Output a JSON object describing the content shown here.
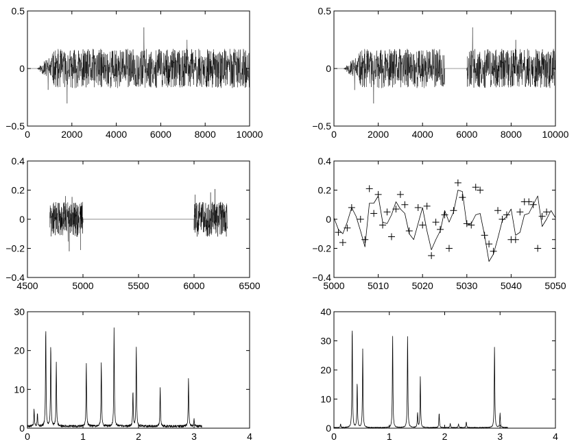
{
  "chart_data": [
    {
      "id": "signal-full",
      "type": "line",
      "xlim": [
        0,
        10000
      ],
      "ylim": [
        -0.5,
        0.5
      ],
      "xticks": [
        0,
        2000,
        4000,
        6000,
        8000,
        10000
      ],
      "yticks": [
        -0.5,
        0,
        0.5
      ],
      "xtick_labels": [
        "0",
        "2000",
        "4000",
        "6000",
        "8000",
        "10000"
      ],
      "ytick_labels": [
        "−0.5",
        "0",
        "0.5"
      ],
      "signal": {
        "zero_until": 430,
        "ramp_end": 1300,
        "amplitude": 0.17,
        "peak_abs": 0.4,
        "gap": null
      }
    },
    {
      "id": "signal-gap",
      "type": "line",
      "xlim": [
        0,
        10000
      ],
      "ylim": [
        -0.5,
        0.5
      ],
      "xticks": [
        0,
        2000,
        4000,
        6000,
        8000,
        10000
      ],
      "yticks": [
        -0.5,
        0,
        0.5
      ],
      "xtick_labels": [
        "0",
        "2000",
        "4000",
        "6000",
        "8000",
        "10000"
      ],
      "ytick_labels": [
        "−0.5",
        "0",
        "0.5"
      ],
      "signal": {
        "zero_until": 430,
        "ramp_end": 1300,
        "amplitude": 0.17,
        "peak_abs": 0.4,
        "gap": [
          5000,
          6000
        ]
      }
    },
    {
      "id": "gap-zoom",
      "type": "line",
      "xlim": [
        4500,
        6500
      ],
      "ylim": [
        -0.4,
        0.4
      ],
      "xticks": [
        4500,
        5000,
        5500,
        6000,
        6500
      ],
      "yticks": [
        -0.4,
        -0.2,
        0,
        0.2,
        0.4
      ],
      "xtick_labels": [
        "4500",
        "5000",
        "5500",
        "6000",
        "6500"
      ],
      "ytick_labels": [
        "−0.4",
        "−0.2",
        "0",
        "0.2",
        "0.4"
      ],
      "segments": [
        [
          4700,
          5000
        ],
        [
          6000,
          6300
        ]
      ],
      "amplitude": 0.12,
      "flat_between": [
        5000,
        6000
      ]
    },
    {
      "id": "reconstruction-zoom",
      "type": "line",
      "xlim": [
        5000,
        5050
      ],
      "ylim": [
        -0.4,
        0.4
      ],
      "xticks": [
        5000,
        5010,
        5020,
        5030,
        5040,
        5050
      ],
      "yticks": [
        -0.4,
        -0.2,
        0,
        0.2,
        0.4
      ],
      "xtick_labels": [
        "5000",
        "5010",
        "5020",
        "5030",
        "5040",
        "5050"
      ],
      "ytick_labels": [
        "−0.4",
        "−0.2",
        "0",
        "0.2",
        "0.4"
      ],
      "series": [
        {
          "style": "line",
          "x": [
            5000,
            5001,
            5002,
            5003,
            5004,
            5005,
            5006,
            5007,
            5008,
            5009,
            5010,
            5011,
            5012,
            5013,
            5014,
            5015,
            5016,
            5017,
            5018,
            5019,
            5020,
            5021,
            5022,
            5023,
            5024,
            5025,
            5026,
            5027,
            5028,
            5029,
            5030,
            5031,
            5032,
            5033,
            5034,
            5035,
            5036,
            5037,
            5038,
            5039,
            5040,
            5041,
            5042,
            5043,
            5044,
            5045,
            5046,
            5047,
            5048,
            5049,
            5050
          ],
          "y": [
            0.01,
            -0.07,
            -0.1,
            -0.02,
            0.08,
            0.02,
            -0.08,
            -0.19,
            0.11,
            0.11,
            0.16,
            -0.02,
            -0.03,
            0.03,
            0.12,
            0.07,
            0.04,
            -0.1,
            -0.14,
            -0.03,
            0.08,
            -0.08,
            -0.21,
            -0.14,
            -0.08,
            0.06,
            -0.02,
            0.05,
            0.2,
            0.19,
            -0.04,
            -0.03,
            0.03,
            0.04,
            -0.11,
            -0.29,
            -0.24,
            -0.13,
            -0.01,
            0.02,
            0.07,
            -0.11,
            -0.09,
            0.03,
            0.04,
            0.1,
            0.16,
            -0.05,
            0.0,
            0.06,
            0.01
          ]
        },
        {
          "style": "plus",
          "x": [
            5001,
            5002,
            5003,
            5004,
            5006,
            5007,
            5008,
            5009,
            5010,
            5011,
            5012,
            5013,
            5014,
            5015,
            5016,
            5017,
            5019,
            5020,
            5021,
            5022,
            5023,
            5024,
            5025,
            5026,
            5027,
            5028,
            5029,
            5030,
            5031,
            5032,
            5033,
            5034,
            5035,
            5036,
            5037,
            5038,
            5039,
            5040,
            5041,
            5042,
            5043,
            5044,
            5045,
            5046,
            5047,
            5048,
            5050
          ],
          "y": [
            -0.09,
            -0.16,
            -0.06,
            0.08,
            0.0,
            -0.14,
            0.21,
            0.04,
            0.17,
            -0.04,
            0.05,
            -0.12,
            0.07,
            0.17,
            0.1,
            -0.08,
            0.08,
            -0.04,
            0.09,
            -0.25,
            -0.02,
            -0.07,
            0.03,
            -0.2,
            0.06,
            0.25,
            0.15,
            -0.03,
            -0.04,
            0.22,
            0.2,
            -0.11,
            -0.17,
            -0.22,
            0.06,
            0.0,
            0.03,
            -0.14,
            -0.14,
            0.05,
            0.12,
            0.12,
            0.1,
            -0.2,
            0.02,
            0.05,
            -0.14
          ]
        }
      ]
    },
    {
      "id": "spectrum-a",
      "type": "line",
      "xlim": [
        0,
        4
      ],
      "ylim": [
        0,
        30
      ],
      "xticks": [
        0,
        1,
        2,
        3,
        4
      ],
      "yticks": [
        0,
        10,
        20,
        30
      ],
      "xtick_labels": [
        "0",
        "1",
        "2",
        "3",
        "4"
      ],
      "ytick_labels": [
        "0",
        "10",
        "20",
        "30"
      ],
      "x_end": 3.14,
      "baseline": 0.5,
      "peaks": [
        [
          0.33,
          25.5
        ],
        [
          0.42,
          21.2
        ],
        [
          0.52,
          16.3
        ],
        [
          0.12,
          4.3
        ],
        [
          0.18,
          3.5
        ],
        [
          1.06,
          16.2
        ],
        [
          1.33,
          16.8
        ],
        [
          1.56,
          25.2
        ],
        [
          1.9,
          8.9
        ],
        [
          1.96,
          20.5
        ],
        [
          2.39,
          10.0
        ],
        [
          2.9,
          12.2
        ],
        [
          3.0,
          1.8
        ]
      ]
    },
    {
      "id": "spectrum-b",
      "type": "line",
      "xlim": [
        0,
        4
      ],
      "ylim": [
        0,
        40
      ],
      "xticks": [
        0,
        1,
        2,
        3,
        4
      ],
      "yticks": [
        0,
        10,
        20,
        30,
        40
      ],
      "xtick_labels": [
        "0",
        "1",
        "2",
        "3",
        "4"
      ],
      "ytick_labels": [
        "0",
        "10",
        "20",
        "30",
        "40"
      ],
      "x_end": 3.14,
      "baseline": 0.2,
      "peaks": [
        [
          0.12,
          1.2
        ],
        [
          0.33,
          35.0
        ],
        [
          0.42,
          15.5
        ],
        [
          0.52,
          27.0
        ],
        [
          1.06,
          31.6
        ],
        [
          1.33,
          31.8
        ],
        [
          1.56,
          17.5
        ],
        [
          1.51,
          5.0
        ],
        [
          1.9,
          5.0
        ],
        [
          2.1,
          1.5
        ],
        [
          2.25,
          1.3
        ],
        [
          2.39,
          2.0
        ],
        [
          2.9,
          28.0
        ],
        [
          3.0,
          5.0
        ]
      ]
    }
  ]
}
